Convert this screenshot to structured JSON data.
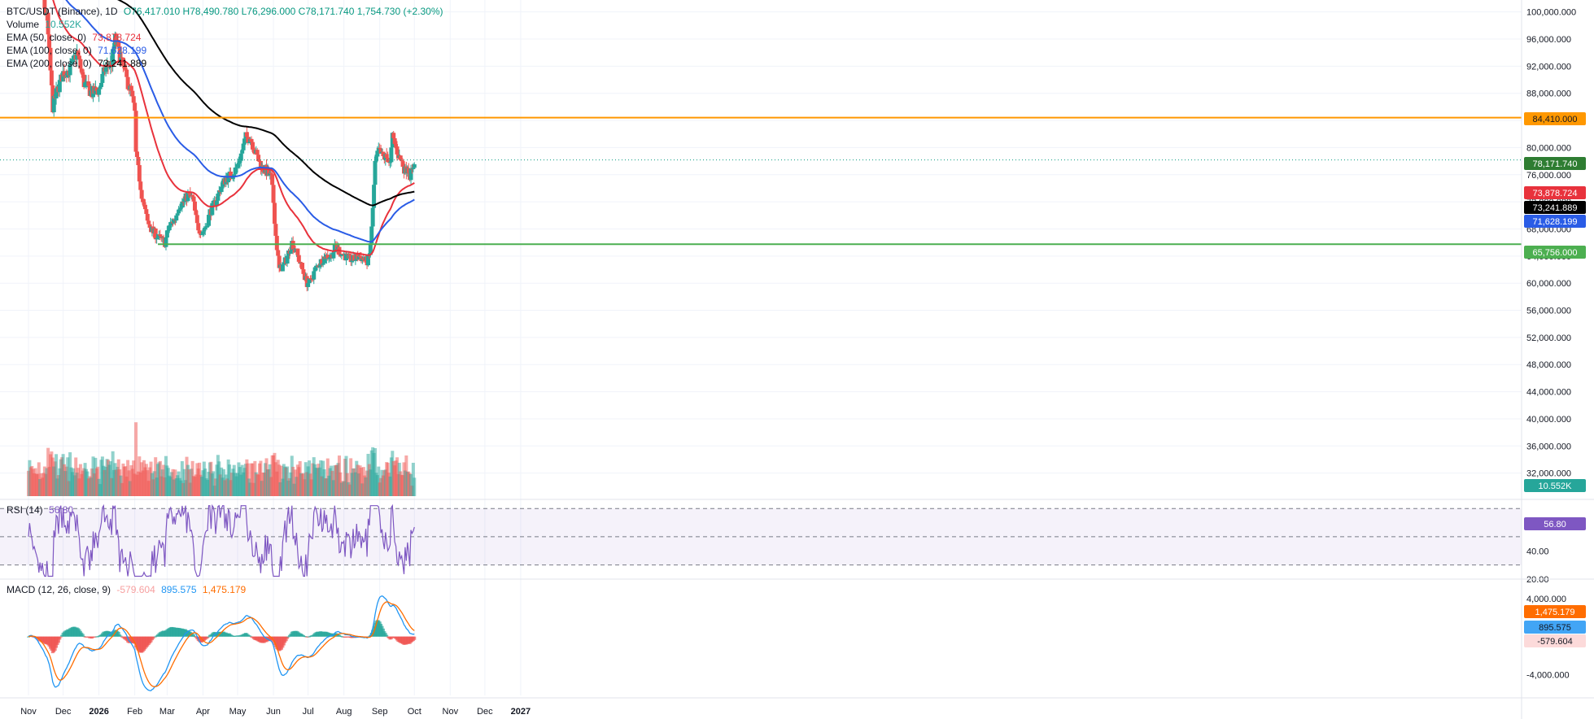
{
  "header": {
    "symbol": "BTC/USDT (Binance), 1D",
    "ohlc": "O76,417.010 H78,490.780 L76,296.000 C78,171.740 1,754.730 (+2.30%)",
    "volume_label": "Volume",
    "volume_value": "10.552K",
    "ema50_label": "EMA (50, close, 0)",
    "ema50_value": "73,878.724",
    "ema100_label": "EMA (100, close, 0)",
    "ema100_value": "71,628.199",
    "ema200_label": "EMA (200, close, 0)",
    "ema200_value": "73,241.889"
  },
  "rsi_legend": {
    "label": "RSI (14)",
    "value": "56.80"
  },
  "macd_legend": {
    "label": "MACD (12, 26, close, 9)",
    "hist": "-579.604",
    "macd": "895.575",
    "signal": "1,475.179"
  },
  "colors": {
    "up": "#26a69a",
    "down": "#ef5350",
    "ema50": "#e8323c",
    "ema100": "#2a5ce6",
    "ema200": "#000000",
    "resistance": "#ff9800",
    "support": "#4caf50",
    "rsi": "#7e57c2",
    "macd": "#2196f3",
    "signal": "#ff6d00"
  },
  "chart_data": {
    "type": "candlestick",
    "price_ticks": [
      "100,000.000",
      "96,000.000",
      "92,000.000",
      "88,000.000",
      "84,000.000",
      "80,000.000",
      "76,000.000",
      "72,000.000",
      "68,000.000",
      "64,000.000",
      "60,000.000",
      "56,000.000",
      "52,000.000",
      "48,000.000",
      "44,000.000",
      "40,000.000",
      "36,000.000",
      "32,000.000"
    ],
    "price_range": [
      29800,
      100800
    ],
    "last_price": "78,171.740",
    "resistance": {
      "value": 84410,
      "label": "84,410.000"
    },
    "support": {
      "value": 65756,
      "label": "65,756.000"
    },
    "ema_labels": {
      "ema50": "73,878.724",
      "ema200": "73,241.889",
      "ema100": "71,628.199"
    },
    "volume_label": "10.552K",
    "time_ticks": [
      {
        "label": "Nov",
        "day": 0
      },
      {
        "label": "Dec",
        "day": 30
      },
      {
        "label": "2026",
        "day": 61
      },
      {
        "label": "Feb",
        "day": 92
      },
      {
        "label": "Mar",
        "day": 120
      },
      {
        "label": "Apr",
        "day": 151
      },
      {
        "label": "May",
        "day": 181
      },
      {
        "label": "Jun",
        "day": 212
      },
      {
        "label": "Jul",
        "day": 242
      },
      {
        "label": "Aug",
        "day": 273
      },
      {
        "label": "Sep",
        "day": 304
      },
      {
        "label": "Oct",
        "day": 334
      },
      {
        "label": "Nov",
        "day": 365
      },
      {
        "label": "Dec",
        "day": 395
      },
      {
        "label": "2027",
        "day": 426
      }
    ],
    "close_path": [
      [
        0,
        110000
      ],
      [
        10,
        104000
      ],
      [
        16,
        99000
      ],
      [
        21,
        86000
      ],
      [
        24,
        88000
      ],
      [
        30,
        91000
      ],
      [
        36,
        91500
      ],
      [
        42,
        94000
      ],
      [
        48,
        89500
      ],
      [
        55,
        88000
      ],
      [
        61,
        88500
      ],
      [
        66,
        91500
      ],
      [
        72,
        92500
      ],
      [
        75,
        96000
      ],
      [
        79,
        93500
      ],
      [
        85,
        90000
      ],
      [
        89,
        88000
      ],
      [
        92,
        85000
      ],
      [
        93,
        79000
      ],
      [
        96,
        75500
      ],
      [
        99,
        72000
      ],
      [
        103,
        69000
      ],
      [
        108,
        67500
      ],
      [
        114,
        66500
      ],
      [
        118,
        66000
      ],
      [
        122,
        68500
      ],
      [
        127,
        69500
      ],
      [
        130,
        71500
      ],
      [
        134,
        72000
      ],
      [
        138,
        73000
      ],
      [
        142,
        72500
      ],
      [
        146,
        68500
      ],
      [
        150,
        67500
      ],
      [
        154,
        68500
      ],
      [
        157,
        70500
      ],
      [
        162,
        72000
      ],
      [
        166,
        74000
      ],
      [
        171,
        75500
      ],
      [
        176,
        76000
      ],
      [
        180,
        77000
      ],
      [
        184,
        79000
      ],
      [
        188,
        81500
      ],
      [
        192,
        81500
      ],
      [
        197,
        79000
      ],
      [
        202,
        77000
      ],
      [
        206,
        76500
      ],
      [
        210,
        75500
      ],
      [
        212,
        72000
      ],
      [
        214,
        67000
      ],
      [
        217,
        62000
      ],
      [
        220,
        62500
      ],
      [
        223,
        63500
      ],
      [
        228,
        66000
      ],
      [
        232,
        64500
      ],
      [
        235,
        63000
      ],
      [
        238,
        61500
      ],
      [
        241,
        60000
      ],
      [
        244,
        60200
      ],
      [
        248,
        62000
      ],
      [
        252,
        63000
      ],
      [
        257,
        64000
      ],
      [
        262,
        64000
      ],
      [
        266,
        65500
      ],
      [
        270,
        64500
      ],
      [
        274,
        64000
      ],
      [
        278,
        63500
      ],
      [
        282,
        63500
      ],
      [
        286,
        64000
      ],
      [
        290,
        63500
      ],
      [
        293,
        63200
      ],
      [
        295,
        64000
      ],
      [
        297,
        68000
      ],
      [
        298,
        71000
      ],
      [
        300,
        77500
      ],
      [
        303,
        79500
      ],
      [
        307,
        78500
      ],
      [
        311,
        78500
      ],
      [
        313,
        77500
      ],
      [
        315,
        81500
      ],
      [
        318,
        80000
      ],
      [
        321,
        78500
      ],
      [
        324,
        77500
      ],
      [
        326,
        76500
      ],
      [
        328,
        77500
      ],
      [
        330,
        76000
      ],
      [
        332,
        76400
      ],
      [
        334,
        78171
      ]
    ],
    "rsi": {
      "ticks": [
        "40.00",
        "20.00"
      ],
      "levels": [
        70,
        50,
        30
      ],
      "last": "56.80",
      "range": [
        20,
        73
      ]
    },
    "macd": {
      "ticks": [
        "4,000.000",
        "-4,000.000"
      ],
      "range": [
        -6200,
        5200
      ],
      "labels": {
        "signal": "1,475.179",
        "macd": "895.575",
        "hist": "-579.604"
      }
    }
  }
}
